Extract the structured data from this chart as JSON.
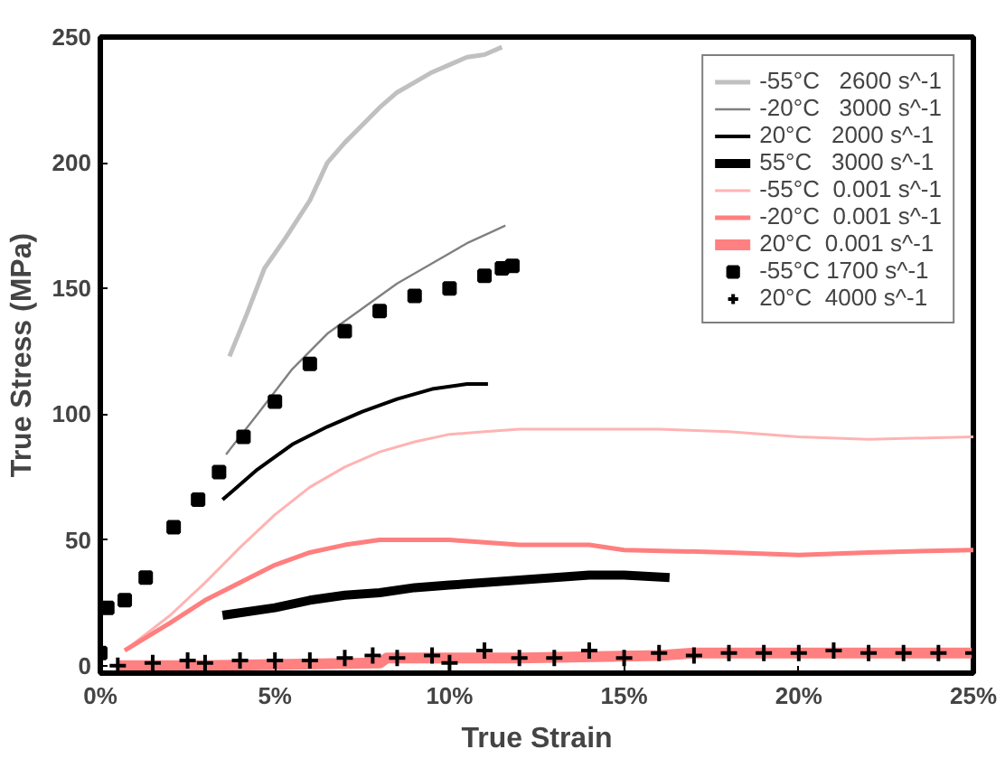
{
  "chart_data": {
    "type": "line",
    "xlabel": "True Strain",
    "ylabel": "True Stress (MPa)",
    "xlim": [
      0,
      25
    ],
    "ylim": [
      -3,
      250
    ],
    "xticks": [
      {
        "value": 0,
        "label": "0%"
      },
      {
        "value": 5,
        "label": "5%"
      },
      {
        "value": 10,
        "label": "10%"
      },
      {
        "value": 15,
        "label": "15%"
      },
      {
        "value": 20,
        "label": "20%"
      },
      {
        "value": 25,
        "label": "25%"
      }
    ],
    "yticks": [
      0,
      50,
      100,
      150,
      200,
      250
    ],
    "grid": false,
    "legend": "top right",
    "series": [
      {
        "name": "-55°C   2600 s^-1",
        "color": "#c0c0c0",
        "x": [
          3.7,
          4.2,
          4.7,
          5.3,
          6,
          6.5,
          7,
          7.5,
          8,
          8.5,
          9,
          9.5,
          10,
          10.5,
          11,
          11.5
        ],
        "values": [
          123,
          140,
          158,
          170,
          185,
          200,
          208,
          215,
          222,
          228,
          232,
          236,
          239,
          242,
          243,
          246
        ]
      },
      {
        "name": "-20°C   3000 s^-1",
        "color": "#808080",
        "x": [
          3.6,
          4.5,
          5.5,
          6.5,
          7.5,
          8.5,
          9.5,
          10.5,
          11.6
        ],
        "values": [
          84,
          100,
          118,
          132,
          142,
          152,
          160,
          168,
          175
        ]
      },
      {
        "name": "20°C   2000 s^-1",
        "color": "#000000",
        "x": [
          3.5,
          4.5,
          5.5,
          6.5,
          7.5,
          8.5,
          9.5,
          10.5,
          11.1
        ],
        "values": [
          66,
          78,
          88,
          95,
          101,
          106,
          110,
          112,
          112
        ]
      },
      {
        "name": "55°C   3000 s^-1",
        "color": "#000000",
        "x": [
          3.5,
          5,
          6,
          7,
          8,
          9,
          10,
          11,
          12,
          13,
          14,
          15,
          16.3
        ],
        "values": [
          20,
          23,
          26,
          28,
          29,
          31,
          32,
          33,
          34,
          35,
          36,
          36,
          35
        ]
      },
      {
        "name": "-55°C  0.001 s^-1",
        "color": "#ffb3b3",
        "x": [
          0.7,
          2,
          3,
          4,
          5,
          6,
          7,
          8,
          9,
          10,
          11,
          12,
          14,
          16,
          18,
          20,
          22,
          25
        ],
        "values": [
          6,
          20,
          33,
          47,
          60,
          71,
          79,
          85,
          89,
          92,
          93,
          94,
          94,
          94,
          93,
          91,
          90,
          91
        ]
      },
      {
        "name": "-20°C  0.001 s^-1",
        "color": "#ff7f7f",
        "x": [
          0.7,
          2,
          3,
          4,
          5,
          6,
          7,
          8,
          9,
          10,
          11,
          12,
          14,
          15,
          18,
          20,
          22,
          25
        ],
        "values": [
          6,
          17,
          26,
          33,
          40,
          45,
          48,
          50,
          50,
          50,
          49,
          48,
          48,
          46,
          45,
          44,
          45,
          46
        ]
      },
      {
        "name": "20°C  0.001 s^-1",
        "color": "#ff8080",
        "x": [
          0.5,
          3,
          8,
          8.2,
          12,
          16,
          17,
          25
        ],
        "values": [
          0,
          0,
          1,
          3,
          3,
          4,
          5,
          5
        ]
      },
      {
        "name": "-55°C 1700 s^-1",
        "type": "scatter",
        "marker": "square",
        "color": "#000000",
        "x": [
          0.0,
          0.2,
          0.7,
          1.3,
          2.1,
          2.8,
          3.4,
          4.1,
          5,
          6,
          7,
          8,
          9,
          10,
          11,
          11.5,
          11.8
        ],
        "values": [
          5,
          23,
          26,
          35,
          55,
          66,
          77,
          91,
          105,
          120,
          133,
          141,
          147,
          150,
          155,
          158,
          159
        ]
      },
      {
        "name": "20°C  4000 s^-1",
        "type": "scatter",
        "marker": "cross",
        "color": "#000000",
        "x": [
          0.5,
          1.5,
          2.5,
          3,
          4,
          5,
          6,
          7,
          7.8,
          8.5,
          9.5,
          10,
          11,
          12,
          13,
          14,
          15,
          16,
          17,
          18,
          19,
          20,
          21,
          22,
          23,
          24,
          25
        ],
        "values": [
          0,
          1,
          2,
          1,
          2,
          2,
          2,
          3,
          4,
          3,
          4,
          1,
          6,
          3,
          3,
          6,
          3,
          5,
          4,
          5,
          5,
          5,
          6,
          5,
          5,
          5,
          5
        ]
      }
    ]
  }
}
